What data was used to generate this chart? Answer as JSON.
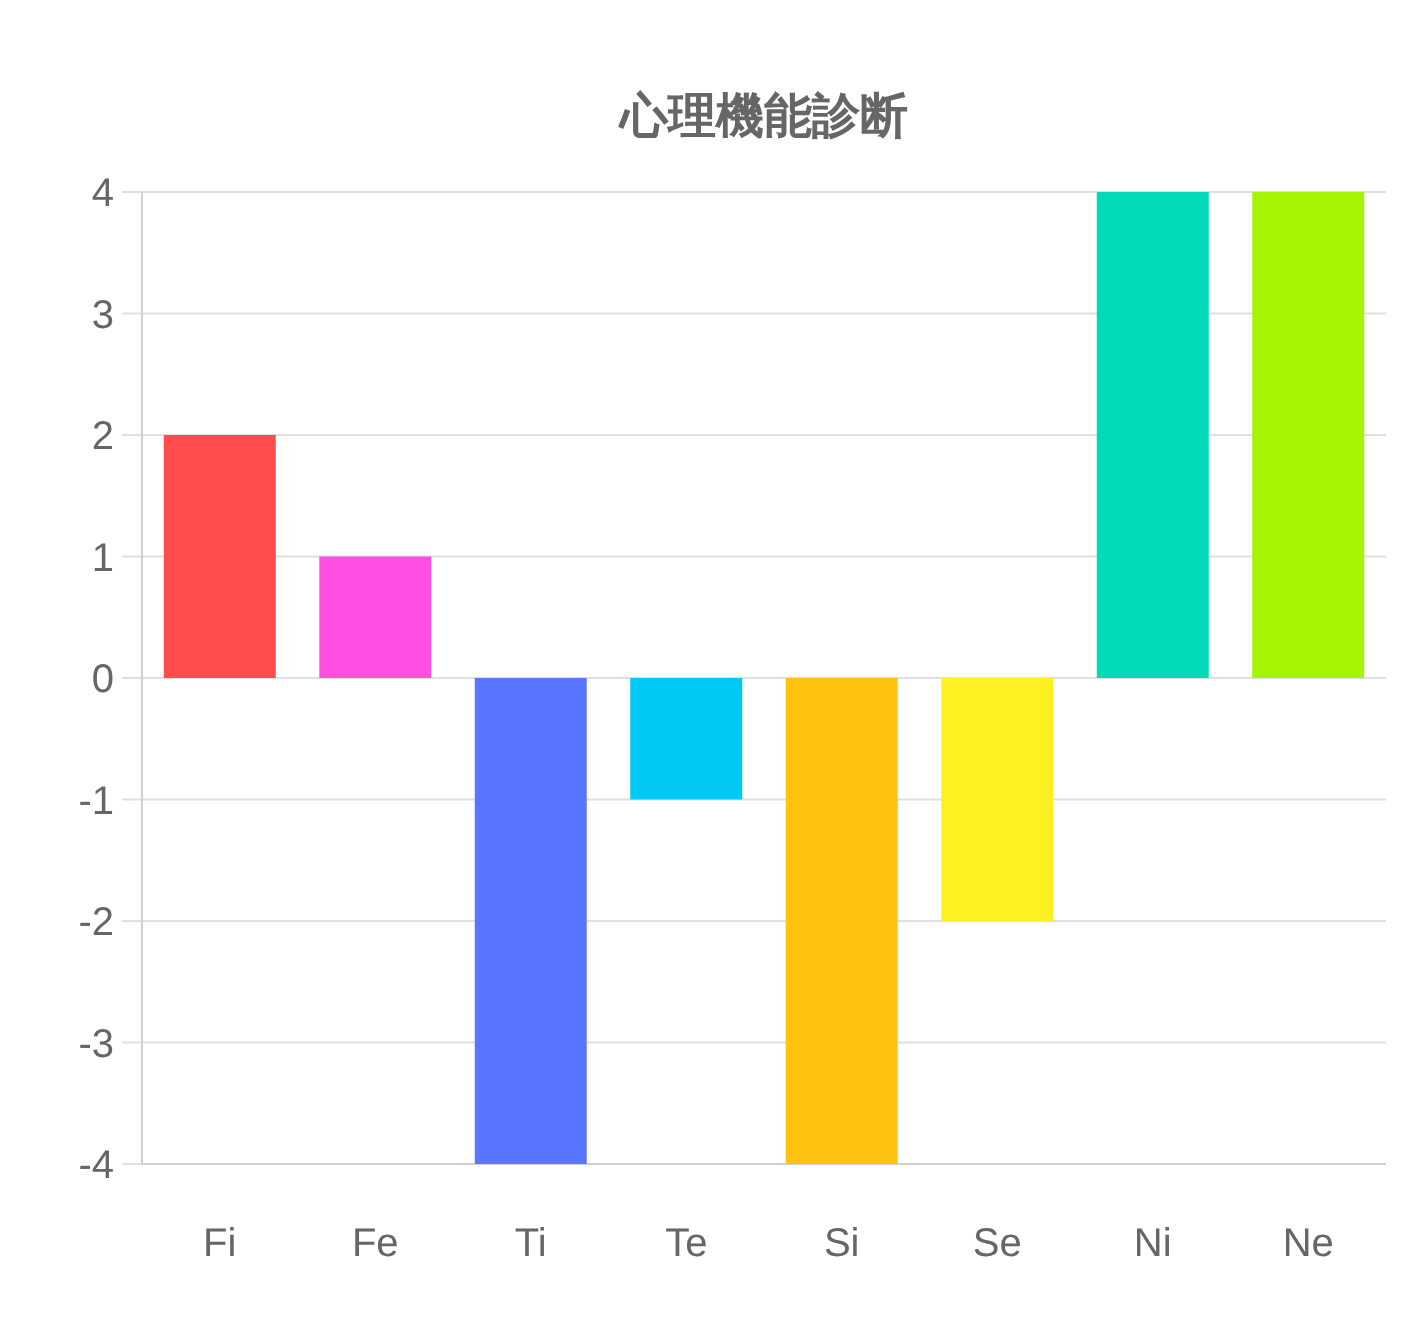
{
  "chart_data": {
    "type": "bar",
    "title": "心理機能診断",
    "categories": [
      "Fi",
      "Fe",
      "Ti",
      "Te",
      "Si",
      "Se",
      "Ni",
      "Ne"
    ],
    "values": [
      2,
      1,
      -4,
      -1,
      -4,
      -2,
      4,
      4
    ],
    "colors": [
      "#ff4d4f",
      "#ff4fe3",
      "#5a75ff",
      "#00c9f5",
      "#ffc20e",
      "#fff021",
      "#00dbb7",
      "#a5f500"
    ],
    "ylim": [
      -4,
      4
    ],
    "yticks": [
      -4,
      -3,
      -2,
      -1,
      0,
      1,
      2,
      3,
      4
    ],
    "grid": "y"
  }
}
